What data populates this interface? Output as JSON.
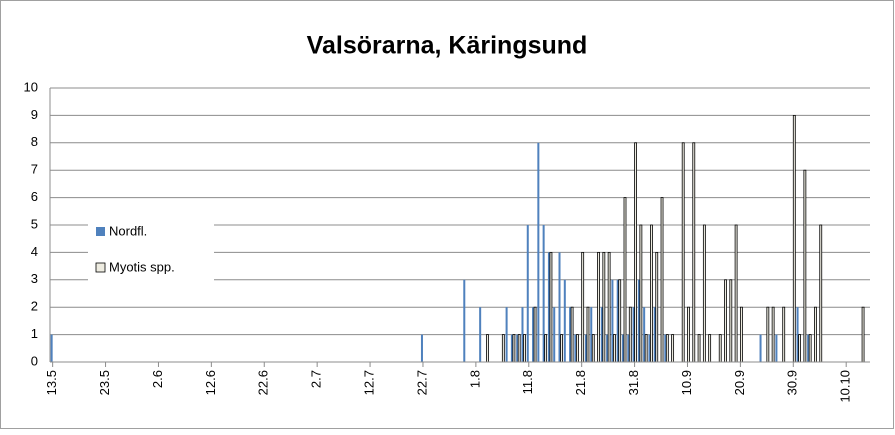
{
  "chart_data": {
    "type": "bar",
    "title": "Valsörarna, Käringsund",
    "categories": [
      "13.5",
      null,
      null,
      null,
      null,
      null,
      null,
      null,
      null,
      null,
      "23.5",
      null,
      null,
      null,
      null,
      null,
      null,
      null,
      null,
      null,
      "2.6",
      null,
      null,
      null,
      null,
      null,
      null,
      null,
      null,
      null,
      "12.6",
      null,
      null,
      null,
      null,
      null,
      null,
      null,
      null,
      null,
      "22.6",
      null,
      null,
      null,
      null,
      null,
      null,
      null,
      null,
      null,
      "2.7",
      null,
      null,
      null,
      null,
      null,
      null,
      null,
      null,
      null,
      "12.7",
      null,
      null,
      null,
      null,
      null,
      null,
      null,
      null,
      null,
      "22.7",
      null,
      null,
      null,
      null,
      null,
      null,
      null,
      null,
      null,
      "1.8",
      null,
      null,
      null,
      null,
      null,
      null,
      null,
      null,
      null,
      "11.8",
      null,
      null,
      null,
      null,
      null,
      null,
      null,
      null,
      null,
      "21.8",
      null,
      null,
      null,
      null,
      null,
      null,
      null,
      null,
      null,
      "31.8",
      null,
      null,
      null,
      null,
      null,
      null,
      null,
      null,
      null,
      "10.9",
      null,
      null,
      null,
      null,
      null,
      null,
      null,
      null,
      null,
      "20.9",
      null,
      null,
      null,
      null,
      null,
      null,
      null,
      null,
      null,
      "30.9",
      null,
      null,
      null,
      null,
      null,
      null,
      null,
      null,
      null,
      "10.10",
      null,
      null,
      null,
      null
    ],
    "series": [
      {
        "name": "Nordfl.",
        "color": "#4f81bd",
        "values": [
          1,
          0,
          0,
          0,
          0,
          0,
          0,
          0,
          0,
          0,
          0,
          0,
          0,
          0,
          0,
          0,
          0,
          0,
          0,
          0,
          0,
          0,
          0,
          0,
          0,
          0,
          0,
          0,
          0,
          0,
          0,
          0,
          0,
          0,
          0,
          0,
          0,
          0,
          0,
          0,
          0,
          0,
          0,
          0,
          0,
          0,
          0,
          0,
          0,
          0,
          0,
          0,
          0,
          0,
          0,
          0,
          0,
          0,
          0,
          0,
          0,
          0,
          0,
          0,
          0,
          0,
          0,
          0,
          0,
          0,
          1,
          0,
          0,
          0,
          0,
          0,
          0,
          0,
          3,
          0,
          0,
          2,
          0,
          0,
          0,
          0,
          2,
          1,
          1,
          2,
          5,
          2,
          8,
          5,
          4,
          2,
          4,
          3,
          2,
          1,
          0,
          1,
          2,
          0,
          2,
          1,
          3,
          3,
          1,
          1,
          2,
          3,
          2,
          1,
          2,
          0,
          1,
          0,
          0,
          0,
          0,
          0,
          0,
          0,
          0,
          0,
          0,
          0,
          0,
          0,
          0,
          0,
          0,
          0,
          1,
          0,
          0,
          1,
          0,
          0,
          0,
          2,
          0,
          1,
          0,
          0,
          0,
          0,
          0,
          0,
          0,
          0,
          0,
          0,
          0
        ]
      },
      {
        "name": "Myotis spp.",
        "color": "#eeece1",
        "values": [
          0,
          0,
          0,
          0,
          0,
          0,
          0,
          0,
          0,
          0,
          0,
          0,
          0,
          0,
          0,
          0,
          0,
          0,
          0,
          0,
          0,
          0,
          0,
          0,
          0,
          0,
          0,
          0,
          0,
          0,
          0,
          0,
          0,
          0,
          0,
          0,
          0,
          0,
          0,
          0,
          0,
          0,
          0,
          0,
          0,
          0,
          0,
          0,
          0,
          0,
          0,
          0,
          0,
          0,
          0,
          0,
          0,
          0,
          0,
          0,
          0,
          0,
          0,
          0,
          0,
          0,
          0,
          0,
          0,
          0,
          0,
          0,
          0,
          0,
          0,
          0,
          0,
          0,
          0,
          0,
          0,
          0,
          1,
          0,
          0,
          1,
          0,
          1,
          1,
          1,
          0,
          2,
          0,
          1,
          4,
          0,
          1,
          0,
          2,
          1,
          4,
          2,
          1,
          4,
          4,
          4,
          1,
          3,
          6,
          2,
          8,
          5,
          1,
          5,
          4,
          6,
          1,
          1,
          0,
          8,
          2,
          8,
          1,
          5,
          1,
          0,
          1,
          3,
          3,
          5,
          2,
          0,
          0,
          0,
          0,
          2,
          2,
          0,
          2,
          0,
          9,
          1,
          7,
          1,
          2,
          5,
          0,
          0,
          0,
          0,
          0,
          0,
          0,
          2,
          0
        ]
      }
    ],
    "ylim": [
      0,
      10
    ],
    "yticks": [
      0,
      1,
      2,
      3,
      4,
      5,
      6,
      7,
      8,
      9,
      10
    ],
    "grid": true,
    "legend": "left"
  }
}
